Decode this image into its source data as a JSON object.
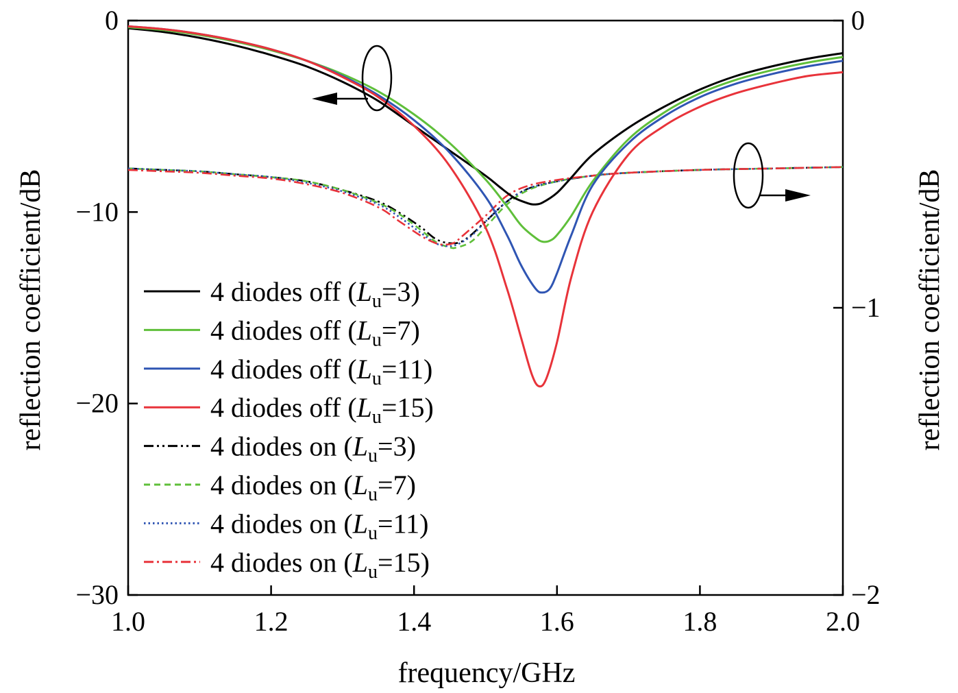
{
  "chart_data": {
    "type": "line",
    "xlabel": "frequency/GHz",
    "ylabel_left": "reflection coefficient/dB",
    "ylabel_right": "reflection coefficient/dB",
    "xlim": [
      1.0,
      2.0
    ],
    "ylim_left": [
      -30,
      0
    ],
    "ylim_right": [
      -2,
      0
    ],
    "xticks": [
      "1.0",
      "1.2",
      "1.4",
      "1.6",
      "1.8",
      "2.0"
    ],
    "yticks_left": [
      "0",
      "−10",
      "−20",
      "−30"
    ],
    "yticks_right": [
      "0",
      "−1",
      "−2"
    ],
    "grid": false,
    "legend_position": "lower-left",
    "series": [
      {
        "name": "4 diodes off (Lu=3)",
        "label_text": "4 diodes off (",
        "label_var": "L",
        "label_sub": "u",
        "label_val": "=3)",
        "axis": "left",
        "color": "#000000",
        "dash": "solid",
        "x": [
          1.0,
          1.05,
          1.1,
          1.15,
          1.2,
          1.25,
          1.3,
          1.35,
          1.4,
          1.45,
          1.5,
          1.52,
          1.54,
          1.56,
          1.57,
          1.58,
          1.6,
          1.62,
          1.65,
          1.7,
          1.75,
          1.8,
          1.85,
          1.9,
          1.95,
          2.0
        ],
        "y": [
          -0.4,
          -0.6,
          -0.9,
          -1.3,
          -1.8,
          -2.4,
          -3.2,
          -4.2,
          -5.5,
          -6.8,
          -8.1,
          -8.7,
          -9.25,
          -9.55,
          -9.6,
          -9.5,
          -9.0,
          -8.2,
          -7.0,
          -5.6,
          -4.5,
          -3.6,
          -2.9,
          -2.4,
          -2.0,
          -1.7
        ]
      },
      {
        "name": "4 diodes off (Lu=7)",
        "label_text": "4 diodes off (",
        "label_var": "L",
        "label_sub": "u",
        "label_val": "=7)",
        "axis": "left",
        "color": "#5fbf3a",
        "dash": "solid",
        "x": [
          1.0,
          1.05,
          1.1,
          1.15,
          1.2,
          1.25,
          1.3,
          1.35,
          1.4,
          1.45,
          1.5,
          1.53,
          1.55,
          1.57,
          1.58,
          1.59,
          1.6,
          1.62,
          1.65,
          1.7,
          1.75,
          1.8,
          1.85,
          1.9,
          1.95,
          2.0
        ],
        "y": [
          -0.35,
          -0.5,
          -0.75,
          -1.1,
          -1.55,
          -2.1,
          -2.8,
          -3.7,
          -4.9,
          -6.4,
          -8.3,
          -9.7,
          -10.7,
          -11.35,
          -11.55,
          -11.5,
          -11.2,
          -10.2,
          -8.4,
          -6.2,
          -4.8,
          -3.8,
          -3.1,
          -2.6,
          -2.2,
          -1.9
        ]
      },
      {
        "name": "4 diodes off (Lu=11)",
        "label_text": "4 diodes off (",
        "label_var": "L",
        "label_sub": "u",
        "label_val": "=11)",
        "axis": "left",
        "color": "#2f55b3",
        "dash": "solid",
        "x": [
          1.0,
          1.05,
          1.1,
          1.15,
          1.2,
          1.25,
          1.3,
          1.35,
          1.4,
          1.45,
          1.5,
          1.53,
          1.55,
          1.57,
          1.58,
          1.59,
          1.6,
          1.62,
          1.65,
          1.7,
          1.75,
          1.8,
          1.85,
          1.9,
          1.95,
          2.0
        ],
        "y": [
          -0.3,
          -0.45,
          -0.7,
          -1.05,
          -1.5,
          -2.1,
          -2.9,
          -3.9,
          -5.2,
          -6.9,
          -9.2,
          -11.2,
          -12.8,
          -14.0,
          -14.2,
          -14.0,
          -13.2,
          -11.2,
          -8.6,
          -6.4,
          -5.0,
          -4.0,
          -3.3,
          -2.8,
          -2.4,
          -2.1
        ]
      },
      {
        "name": "4 diodes off (Lu=15)",
        "label_text": "4 diodes off (",
        "label_var": "L",
        "label_sub": "u",
        "label_val": "=15)",
        "axis": "left",
        "color": "#e8333a",
        "dash": "solid",
        "x": [
          1.0,
          1.05,
          1.1,
          1.15,
          1.2,
          1.25,
          1.3,
          1.35,
          1.4,
          1.45,
          1.5,
          1.53,
          1.55,
          1.565,
          1.575,
          1.585,
          1.6,
          1.62,
          1.65,
          1.7,
          1.75,
          1.8,
          1.85,
          1.9,
          1.95,
          2.0
        ],
        "y": [
          -0.3,
          -0.45,
          -0.7,
          -1.05,
          -1.5,
          -2.1,
          -2.95,
          -4.0,
          -5.5,
          -7.6,
          -10.8,
          -14.0,
          -16.6,
          -18.5,
          -19.1,
          -18.7,
          -16.8,
          -13.4,
          -10.0,
          -7.0,
          -5.5,
          -4.5,
          -3.8,
          -3.3,
          -2.9,
          -2.7
        ]
      },
      {
        "name": "4 diodes on (Lu=3)",
        "label_text": "4 diodes on (",
        "label_var": "L",
        "label_sub": "u",
        "label_val": "=3)",
        "axis": "right",
        "color": "#000000",
        "dash": "dashdotdot",
        "x": [
          1.0,
          1.05,
          1.1,
          1.15,
          1.2,
          1.25,
          1.3,
          1.35,
          1.38,
          1.41,
          1.43,
          1.45,
          1.47,
          1.5,
          1.53,
          1.56,
          1.6,
          1.65,
          1.7,
          1.8,
          1.9,
          2.0
        ],
        "y": [
          -0.515,
          -0.52,
          -0.525,
          -0.535,
          -0.545,
          -0.56,
          -0.59,
          -0.63,
          -0.67,
          -0.72,
          -0.76,
          -0.775,
          -0.765,
          -0.7,
          -0.63,
          -0.585,
          -0.56,
          -0.54,
          -0.53,
          -0.52,
          -0.515,
          -0.51
        ]
      },
      {
        "name": "4 diodes on (Lu=7)",
        "label_text": "4 diodes on (",
        "label_var": "L",
        "label_sub": "u",
        "label_val": "=7)",
        "axis": "right",
        "color": "#5fbf3a",
        "dash": "dashed",
        "x": [
          1.0,
          1.05,
          1.1,
          1.15,
          1.2,
          1.25,
          1.3,
          1.35,
          1.38,
          1.41,
          1.43,
          1.45,
          1.46,
          1.48,
          1.5,
          1.53,
          1.56,
          1.6,
          1.65,
          1.7,
          1.8,
          1.9,
          2.0
        ],
        "y": [
          -0.515,
          -0.52,
          -0.525,
          -0.535,
          -0.545,
          -0.56,
          -0.59,
          -0.635,
          -0.675,
          -0.73,
          -0.77,
          -0.79,
          -0.79,
          -0.77,
          -0.72,
          -0.64,
          -0.59,
          -0.56,
          -0.54,
          -0.53,
          -0.52,
          -0.515,
          -0.51
        ]
      },
      {
        "name": "4 diodes on (Lu=11)",
        "label_text": "4 diodes on (",
        "label_var": "L",
        "label_sub": "u",
        "label_val": "=11)",
        "axis": "right",
        "color": "#2f55b3",
        "dash": "dotted",
        "x": [
          1.0,
          1.05,
          1.1,
          1.15,
          1.2,
          1.25,
          1.3,
          1.35,
          1.38,
          1.41,
          1.43,
          1.445,
          1.46,
          1.48,
          1.5,
          1.53,
          1.56,
          1.6,
          1.65,
          1.7,
          1.8,
          1.9,
          2.0
        ],
        "y": [
          -0.515,
          -0.52,
          -0.525,
          -0.535,
          -0.545,
          -0.565,
          -0.595,
          -0.64,
          -0.685,
          -0.74,
          -0.775,
          -0.785,
          -0.78,
          -0.75,
          -0.7,
          -0.63,
          -0.585,
          -0.56,
          -0.54,
          -0.53,
          -0.52,
          -0.515,
          -0.51
        ]
      },
      {
        "name": "4 diodes on (Lu=15)",
        "label_text": "4 diodes on (",
        "label_var": "L",
        "label_sub": "u",
        "label_val": "=15)",
        "axis": "right",
        "color": "#e8333a",
        "dash": "dashdot",
        "x": [
          1.0,
          1.05,
          1.1,
          1.15,
          1.2,
          1.25,
          1.3,
          1.35,
          1.38,
          1.41,
          1.43,
          1.44,
          1.455,
          1.47,
          1.5,
          1.53,
          1.56,
          1.6,
          1.65,
          1.7,
          1.8,
          1.9,
          2.0
        ],
        "y": [
          -0.52,
          -0.525,
          -0.53,
          -0.54,
          -0.55,
          -0.57,
          -0.6,
          -0.65,
          -0.7,
          -0.75,
          -0.775,
          -0.78,
          -0.775,
          -0.745,
          -0.68,
          -0.61,
          -0.575,
          -0.555,
          -0.54,
          -0.53,
          -0.52,
          -0.515,
          -0.51
        ]
      }
    ]
  }
}
